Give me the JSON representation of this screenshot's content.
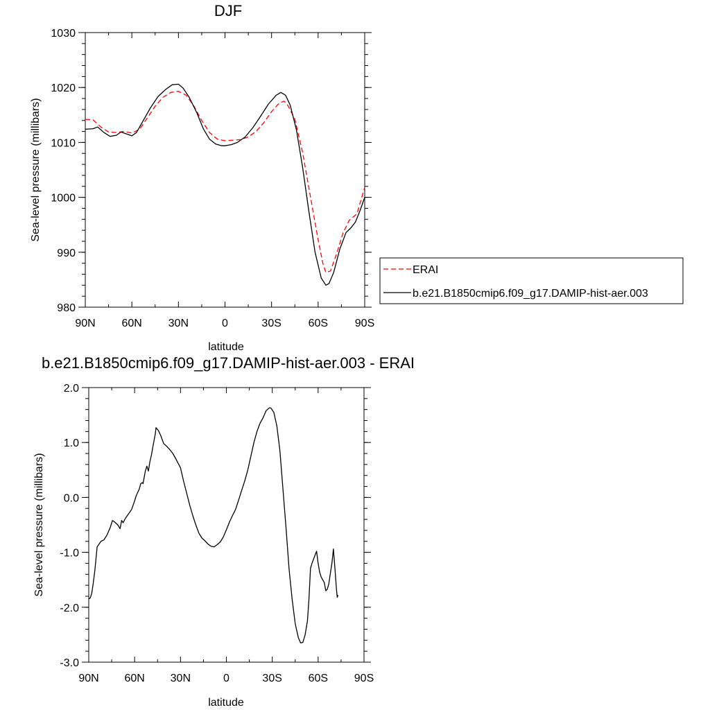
{
  "chart_data": [
    {
      "type": "line",
      "title": "DJF",
      "xlabel": "latitude",
      "ylabel": "Sea-level pressure (millibars)",
      "xlim": [
        90,
        -90
      ],
      "ylim": [
        980,
        1030
      ],
      "x_ticks": [
        {
          "value": 90,
          "label": "90N"
        },
        {
          "value": 60,
          "label": "60N"
        },
        {
          "value": 30,
          "label": "30N"
        },
        {
          "value": 0,
          "label": "0"
        },
        {
          "value": -30,
          "label": "30S"
        },
        {
          "value": -60,
          "label": "60S"
        },
        {
          "value": -90,
          "label": "90S"
        }
      ],
      "y_ticks": [
        {
          "value": 980,
          "label": "980"
        },
        {
          "value": 990,
          "label": "990"
        },
        {
          "value": 1000,
          "label": "1000"
        },
        {
          "value": 1010,
          "label": "1010"
        },
        {
          "value": 1020,
          "label": "1020"
        },
        {
          "value": 1030,
          "label": "1030"
        }
      ],
      "legend_position": "right",
      "series": [
        {
          "name": "ERAI",
          "color": "#ff0000",
          "dash": "dashed",
          "points": [
            [
              90,
              1014.2
            ],
            [
              85,
              1014.1
            ],
            [
              80,
              1012.8
            ],
            [
              75,
              1011.9
            ],
            [
              70,
              1011.8
            ],
            [
              65,
              1012.0
            ],
            [
              60,
              1011.7
            ],
            [
              55,
              1012.4
            ],
            [
              50,
              1014.5
            ],
            [
              45,
              1016.6
            ],
            [
              40,
              1018.2
            ],
            [
              35,
              1019.1
            ],
            [
              30,
              1019.3
            ],
            [
              25,
              1018.6
            ],
            [
              20,
              1016.6
            ],
            [
              15,
              1014.0
            ],
            [
              10,
              1011.8
            ],
            [
              5,
              1010.6
            ],
            [
              0,
              1010.3
            ],
            [
              -5,
              1010.4
            ],
            [
              -10,
              1010.5
            ],
            [
              -15,
              1011.0
            ],
            [
              -20,
              1012.0
            ],
            [
              -25,
              1013.6
            ],
            [
              -30,
              1015.6
            ],
            [
              -35,
              1017.2
            ],
            [
              -38,
              1017.5
            ],
            [
              -40,
              1017.0
            ],
            [
              -45,
              1014.2
            ],
            [
              -50,
              1008.2
            ],
            [
              -55,
              1000.2
            ],
            [
              -60,
              992.3
            ],
            [
              -63,
              988.0
            ],
            [
              -65,
              986.3
            ],
            [
              -68,
              986.6
            ],
            [
              -72,
              989.8
            ],
            [
              -76,
              993.5
            ],
            [
              -80,
              995.8
            ],
            [
              -85,
              997.0
            ],
            [
              -90,
              1001.8
            ]
          ]
        },
        {
          "name": "b.e21.B1850cmip6.f09_g17.DAMIP-hist-aer.003",
          "color": "#000000",
          "dash": "solid",
          "points": [
            [
              90,
              1012.4
            ],
            [
              85,
              1012.5
            ],
            [
              82,
              1012.8
            ],
            [
              78,
              1011.8
            ],
            [
              74,
              1011.1
            ],
            [
              70,
              1011.3
            ],
            [
              67,
              1011.9
            ],
            [
              63,
              1011.5
            ],
            [
              60,
              1011.2
            ],
            [
              57,
              1011.8
            ],
            [
              53,
              1013.8
            ],
            [
              48,
              1016.3
            ],
            [
              43,
              1018.4
            ],
            [
              38,
              1019.7
            ],
            [
              34,
              1020.5
            ],
            [
              30,
              1020.6
            ],
            [
              27,
              1019.9
            ],
            [
              23,
              1018.2
            ],
            [
              18,
              1015.3
            ],
            [
              14,
              1012.5
            ],
            [
              10,
              1010.6
            ],
            [
              6,
              1009.7
            ],
            [
              2,
              1009.4
            ],
            [
              0,
              1009.4
            ],
            [
              -4,
              1009.6
            ],
            [
              -8,
              1010.0
            ],
            [
              -13,
              1011.0
            ],
            [
              -18,
              1012.7
            ],
            [
              -23,
              1014.8
            ],
            [
              -28,
              1017.0
            ],
            [
              -33,
              1018.6
            ],
            [
              -36,
              1019.1
            ],
            [
              -39,
              1018.6
            ],
            [
              -42,
              1016.8
            ],
            [
              -46,
              1012.3
            ],
            [
              -50,
              1005.5
            ],
            [
              -54,
              997.5
            ],
            [
              -58,
              990.0
            ],
            [
              -62,
              985.3
            ],
            [
              -65,
              984.0
            ],
            [
              -67,
              984.3
            ],
            [
              -70,
              986.3
            ],
            [
              -74,
              990.6
            ],
            [
              -78,
              993.6
            ],
            [
              -81,
              994.4
            ],
            [
              -84,
              995.5
            ],
            [
              -87,
              997.6
            ],
            [
              -90,
              1000.0
            ]
          ]
        }
      ]
    },
    {
      "type": "line",
      "title": "b.e21.B1850cmip6.f09_g17.DAMIP-hist-aer.003 - ERAI",
      "xlabel": "latitude",
      "ylabel": "Sea-level pressure (millibars)",
      "xlim": [
        90,
        -90
      ],
      "ylim": [
        -3.0,
        2.0
      ],
      "x_ticks": [
        {
          "value": 90,
          "label": "90N"
        },
        {
          "value": 60,
          "label": "60N"
        },
        {
          "value": 30,
          "label": "30N"
        },
        {
          "value": 0,
          "label": "0"
        },
        {
          "value": -30,
          "label": "30S"
        },
        {
          "value": -60,
          "label": "60S"
        },
        {
          "value": -90,
          "label": "90S"
        }
      ],
      "y_ticks": [
        {
          "value": -3.0,
          "label": "-3.0"
        },
        {
          "value": -2.0,
          "label": "-2.0"
        },
        {
          "value": -1.0,
          "label": "-1.0"
        },
        {
          "value": 0.0,
          "label": "0.0"
        },
        {
          "value": 1.0,
          "label": "1.0"
        },
        {
          "value": 2.0,
          "label": "2.0"
        }
      ],
      "series": [
        {
          "color": "#000000",
          "dash": "solid",
          "points": [
            [
              90,
              -1.85
            ],
            [
              89,
              -1.83
            ],
            [
              88,
              -1.74
            ],
            [
              87,
              -1.55
            ],
            [
              86,
              -1.33
            ],
            [
              84.5,
              -0.9
            ],
            [
              82,
              -0.8
            ],
            [
              80,
              -0.77
            ],
            [
              78,
              -0.68
            ],
            [
              76,
              -0.55
            ],
            [
              74.5,
              -0.42
            ],
            [
              73,
              -0.45
            ],
            [
              71,
              -0.5
            ],
            [
              69.5,
              -0.57
            ],
            [
              68.5,
              -0.42
            ],
            [
              67.5,
              -0.46
            ],
            [
              66,
              -0.38
            ],
            [
              64,
              -0.3
            ],
            [
              62,
              -0.22
            ],
            [
              60,
              -0.06
            ],
            [
              59,
              0.03
            ],
            [
              57,
              0.15
            ],
            [
              56,
              0.25
            ],
            [
              55,
              0.27
            ],
            [
              54.5,
              0.25
            ],
            [
              53,
              0.48
            ],
            [
              52,
              0.57
            ],
            [
              51,
              0.48
            ],
            [
              50,
              0.65
            ],
            [
              49,
              0.77
            ],
            [
              48,
              0.93
            ],
            [
              46.5,
              1.15
            ],
            [
              46,
              1.27
            ],
            [
              44.5,
              1.22
            ],
            [
              43,
              1.13
            ],
            [
              41,
              0.98
            ],
            [
              39,
              0.93
            ],
            [
              37,
              0.87
            ],
            [
              35,
              0.8
            ],
            [
              33,
              0.7
            ],
            [
              30,
              0.54
            ],
            [
              28,
              0.3
            ],
            [
              26,
              0.08
            ],
            [
              24,
              -0.14
            ],
            [
              22,
              -0.33
            ],
            [
              20,
              -0.5
            ],
            [
              18,
              -0.65
            ],
            [
              16,
              -0.74
            ],
            [
              14,
              -0.79
            ],
            [
              12,
              -0.85
            ],
            [
              10,
              -0.89
            ],
            [
              8,
              -0.9
            ],
            [
              6,
              -0.86
            ],
            [
              4,
              -0.81
            ],
            [
              2,
              -0.72
            ],
            [
              0,
              -0.59
            ],
            [
              -2,
              -0.45
            ],
            [
              -4,
              -0.33
            ],
            [
              -6,
              -0.22
            ],
            [
              -8,
              -0.05
            ],
            [
              -10,
              0.13
            ],
            [
              -12,
              0.3
            ],
            [
              -14,
              0.5
            ],
            [
              -16,
              0.75
            ],
            [
              -18,
              1.0
            ],
            [
              -20,
              1.2
            ],
            [
              -22,
              1.35
            ],
            [
              -24,
              1.45
            ],
            [
              -26,
              1.58
            ],
            [
              -28,
              1.63
            ],
            [
              -29,
              1.63
            ],
            [
              -31,
              1.55
            ],
            [
              -33,
              1.3
            ],
            [
              -35,
              0.85
            ],
            [
              -37,
              0.15
            ],
            [
              -39,
              -0.55
            ],
            [
              -41,
              -1.3
            ],
            [
              -43,
              -1.85
            ],
            [
              -45,
              -2.3
            ],
            [
              -47,
              -2.55
            ],
            [
              -48.5,
              -2.65
            ],
            [
              -50,
              -2.64
            ],
            [
              -51.5,
              -2.5
            ],
            [
              -53,
              -2.25
            ],
            [
              -54,
              -1.85
            ],
            [
              -55,
              -1.29
            ],
            [
              -56,
              -1.2
            ],
            [
              -58,
              -1.05
            ],
            [
              -59,
              -0.98
            ],
            [
              -60,
              -1.2
            ],
            [
              -61,
              -1.36
            ],
            [
              -62,
              -1.45
            ],
            [
              -63,
              -1.5
            ],
            [
              -64,
              -1.55
            ],
            [
              -65,
              -1.7
            ],
            [
              -66,
              -1.67
            ],
            [
              -67,
              -1.57
            ],
            [
              -68,
              -1.38
            ],
            [
              -69,
              -1.2
            ],
            [
              -70,
              -0.94
            ],
            [
              -71,
              -1.3
            ],
            [
              -72,
              -1.68
            ],
            [
              -72.5,
              -1.82
            ],
            [
              -73,
              -1.78
            ]
          ]
        }
      ]
    }
  ]
}
